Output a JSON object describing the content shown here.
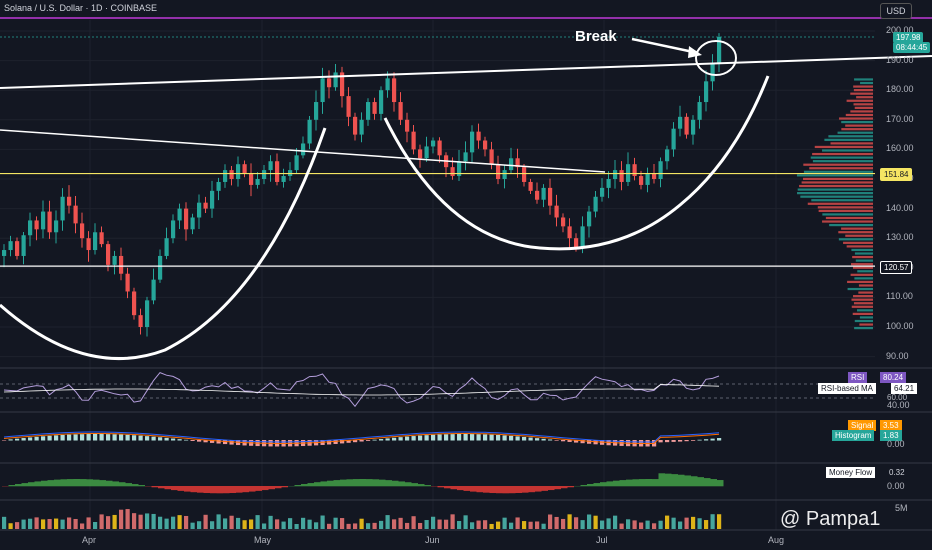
{
  "header": {
    "title": "Solana / U.S. Dollar · 1D · COINBASE",
    "currency_button": "USD"
  },
  "annotation": {
    "break_label": "Break"
  },
  "price_axis": {
    "ticks": [
      "200.00",
      "190.00",
      "180.00",
      "170.00",
      "160.00",
      "150.00",
      "140.00",
      "130.00",
      "120.00",
      "110.00",
      "100.00",
      "90.00"
    ],
    "current_price": "197.98",
    "countdown": "08:44:45",
    "level_upper": "151.84",
    "level_lower": "120.57"
  },
  "time_axis": {
    "labels": [
      "Apr",
      "May",
      "Jun",
      "Jul",
      "Aug"
    ]
  },
  "indicators": {
    "rsi": {
      "name": "RSI",
      "value": "80.24",
      "ma_name": "RSI-based MA",
      "ma_value": "64.21",
      "ticks": [
        "60.00",
        "40.00"
      ]
    },
    "macd": {
      "signal_name": "Signal",
      "signal_value": "3.53",
      "histogram_name": "Histogram",
      "histogram_value": "1.83",
      "ticks": [
        "0.00"
      ]
    },
    "money_flow": {
      "name": "Money Flow",
      "value": "0.32",
      "ticks": [
        "0.00"
      ]
    },
    "volume": {
      "ticks": [
        "5M"
      ]
    }
  },
  "watermark": "@ Pampa1",
  "colors": {
    "background": "#131722",
    "up": "#26a69a",
    "down": "#ef5350",
    "level_upper": "#f5e663",
    "level_lower": "#ffffff",
    "top_line": "#e040fb"
  },
  "chart_data": {
    "type": "candlestick",
    "symbol": "Solana / U.S. Dollar",
    "interval": "1D",
    "exchange": "COINBASE",
    "y_range": [
      88,
      202
    ],
    "horizontal_levels": [
      151.84,
      120.57
    ],
    "x_labels": [
      "Apr",
      "May",
      "Jun",
      "Jul",
      "Aug"
    ],
    "closes": [
      126,
      129,
      124,
      131,
      136,
      133,
      139,
      132,
      136,
      144,
      141,
      135,
      130,
      126,
      132,
      128,
      121,
      124,
      118,
      112,
      104,
      100,
      109,
      116,
      124,
      130,
      136,
      140,
      133,
      137,
      142,
      140,
      146,
      149,
      153,
      150,
      155,
      152,
      148,
      150,
      153,
      156,
      149,
      151,
      153,
      158,
      162,
      170,
      176,
      184,
      181,
      186,
      178,
      171,
      165,
      170,
      176,
      172,
      180,
      184,
      176,
      170,
      166,
      160,
      157,
      161,
      163,
      158,
      154,
      151,
      156,
      159,
      166,
      163,
      160,
      155,
      150,
      153,
      157,
      154,
      149,
      146,
      143,
      147,
      141,
      137,
      134,
      130,
      127,
      134,
      139,
      144,
      147,
      150,
      153,
      149,
      155,
      151,
      148,
      152,
      150,
      156,
      160,
      167,
      171,
      165,
      170,
      176,
      183,
      189,
      197.98
    ],
    "rsi": {
      "value": 80.24,
      "ma": 64.21
    },
    "macd": {
      "signal": 3.53,
      "histogram": 1.83
    },
    "money_flow": 0.32
  }
}
